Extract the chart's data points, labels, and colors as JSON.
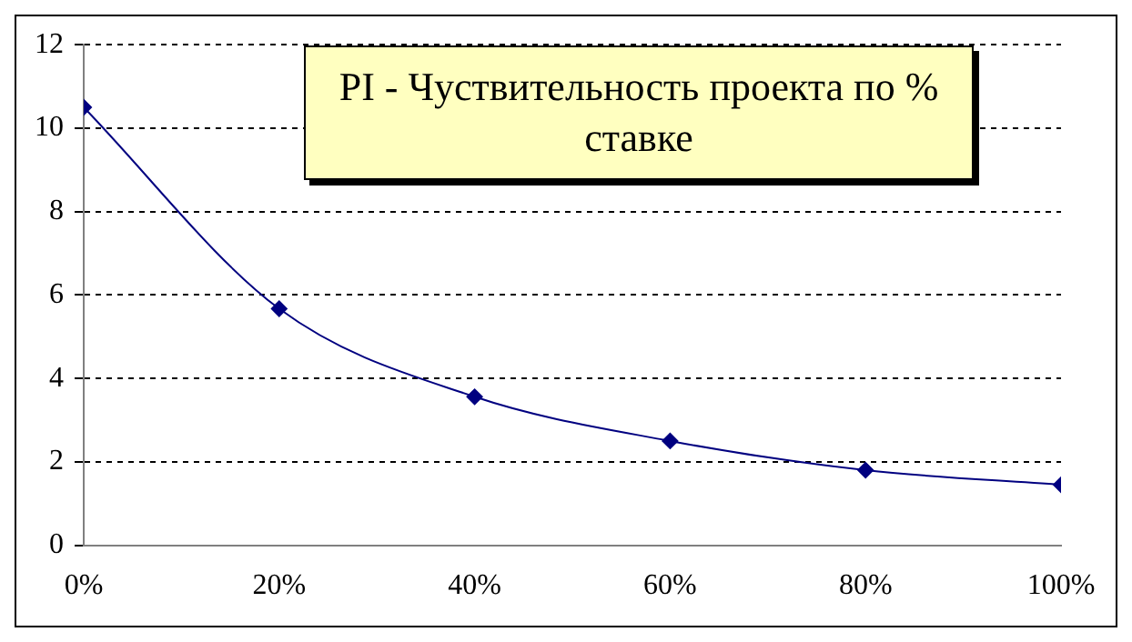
{
  "chart_data": {
    "type": "line",
    "title": "PI - Чуствительность проекта по % ставке",
    "x": [
      0,
      20,
      40,
      60,
      80,
      100
    ],
    "series": [
      {
        "color": "#000080",
        "values": [
          10.5,
          5.67,
          3.56,
          2.5,
          1.8,
          1.45
        ]
      }
    ],
    "xlim": [
      0,
      100
    ],
    "xticks": [
      {
        "value": 0,
        "label": "0%"
      },
      {
        "value": 20,
        "label": "20%"
      },
      {
        "value": 40,
        "label": "40%"
      },
      {
        "value": 60,
        "label": "60%"
      },
      {
        "value": 80,
        "label": "80%"
      },
      {
        "value": 100,
        "label": "100%"
      }
    ],
    "ylim": [
      0,
      12
    ],
    "yticks": [
      0,
      2,
      4,
      6,
      8,
      10,
      12
    ],
    "grid": "y",
    "legend": false,
    "marker": "diamond",
    "line_style": "solid"
  }
}
